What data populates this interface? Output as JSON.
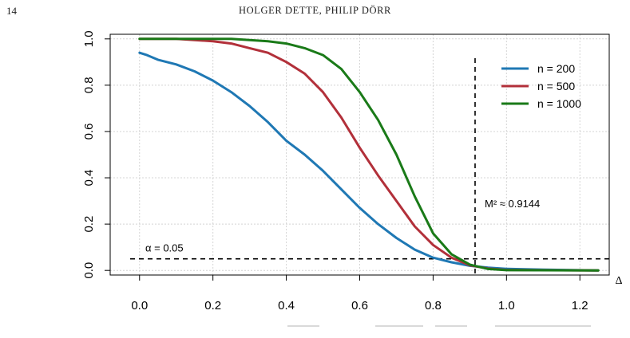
{
  "page": {
    "number": "14",
    "running_head": "HOLGER DETTE, PHILIP DÖRR"
  },
  "chart_data": {
    "type": "line",
    "title": "",
    "xlabel": "Δ",
    "ylabel": "",
    "xlim": [
      -0.08,
      1.28
    ],
    "ylim": [
      -0.02,
      1.02
    ],
    "xticks": [
      0.0,
      0.2,
      0.4,
      0.6,
      0.8,
      1.0,
      1.2
    ],
    "xtick_labels": [
      "0.0",
      "0.2",
      "0.4",
      "0.6",
      "0.8",
      "1.0",
      "1.2"
    ],
    "yticks": [
      0.0,
      0.2,
      0.4,
      0.6,
      0.8,
      1.0
    ],
    "ytick_labels": [
      "0.0",
      "0.2",
      "0.4",
      "0.6",
      "0.8",
      "1.0"
    ],
    "grid": true,
    "legend_position": "top-right",
    "series": [
      {
        "name": "n = 200",
        "color": "#1f78b4",
        "x": [
          0.0,
          0.02,
          0.05,
          0.1,
          0.15,
          0.2,
          0.25,
          0.3,
          0.35,
          0.4,
          0.45,
          0.5,
          0.55,
          0.6,
          0.65,
          0.7,
          0.75,
          0.8,
          0.85,
          0.9,
          0.95,
          1.0,
          1.1,
          1.25
        ],
        "values": [
          0.94,
          0.93,
          0.91,
          0.89,
          0.86,
          0.82,
          0.77,
          0.71,
          0.64,
          0.56,
          0.5,
          0.43,
          0.35,
          0.27,
          0.2,
          0.14,
          0.09,
          0.055,
          0.035,
          0.02,
          0.012,
          0.007,
          0.003,
          0.0
        ]
      },
      {
        "name": "n = 500",
        "color": "#b2303a",
        "x": [
          0.0,
          0.1,
          0.2,
          0.25,
          0.3,
          0.35,
          0.4,
          0.45,
          0.5,
          0.55,
          0.6,
          0.65,
          0.7,
          0.75,
          0.8,
          0.85,
          0.9,
          0.95,
          1.0,
          1.25
        ],
        "values": [
          1.0,
          1.0,
          0.99,
          0.98,
          0.96,
          0.94,
          0.9,
          0.85,
          0.77,
          0.66,
          0.53,
          0.41,
          0.3,
          0.19,
          0.11,
          0.055,
          0.022,
          0.008,
          0.002,
          0.0
        ]
      },
      {
        "name": "n = 1000",
        "color": "#1a7a18",
        "x": [
          0.0,
          0.15,
          0.25,
          0.3,
          0.35,
          0.4,
          0.45,
          0.5,
          0.55,
          0.6,
          0.65,
          0.7,
          0.75,
          0.8,
          0.85,
          0.9,
          0.95,
          1.0,
          1.25
        ],
        "values": [
          1.0,
          1.0,
          1.0,
          0.995,
          0.99,
          0.98,
          0.96,
          0.93,
          0.87,
          0.77,
          0.65,
          0.5,
          0.32,
          0.16,
          0.07,
          0.025,
          0.006,
          0.001,
          0.0
        ]
      }
    ],
    "reference_lines": [
      {
        "orientation": "horizontal",
        "value": 0.05,
        "label": "α = 0.05",
        "style": "dashed"
      },
      {
        "orientation": "vertical",
        "value": 0.9144,
        "label": "M² ≈ 0.9144",
        "style": "dashed"
      }
    ]
  },
  "caption_visible": false
}
